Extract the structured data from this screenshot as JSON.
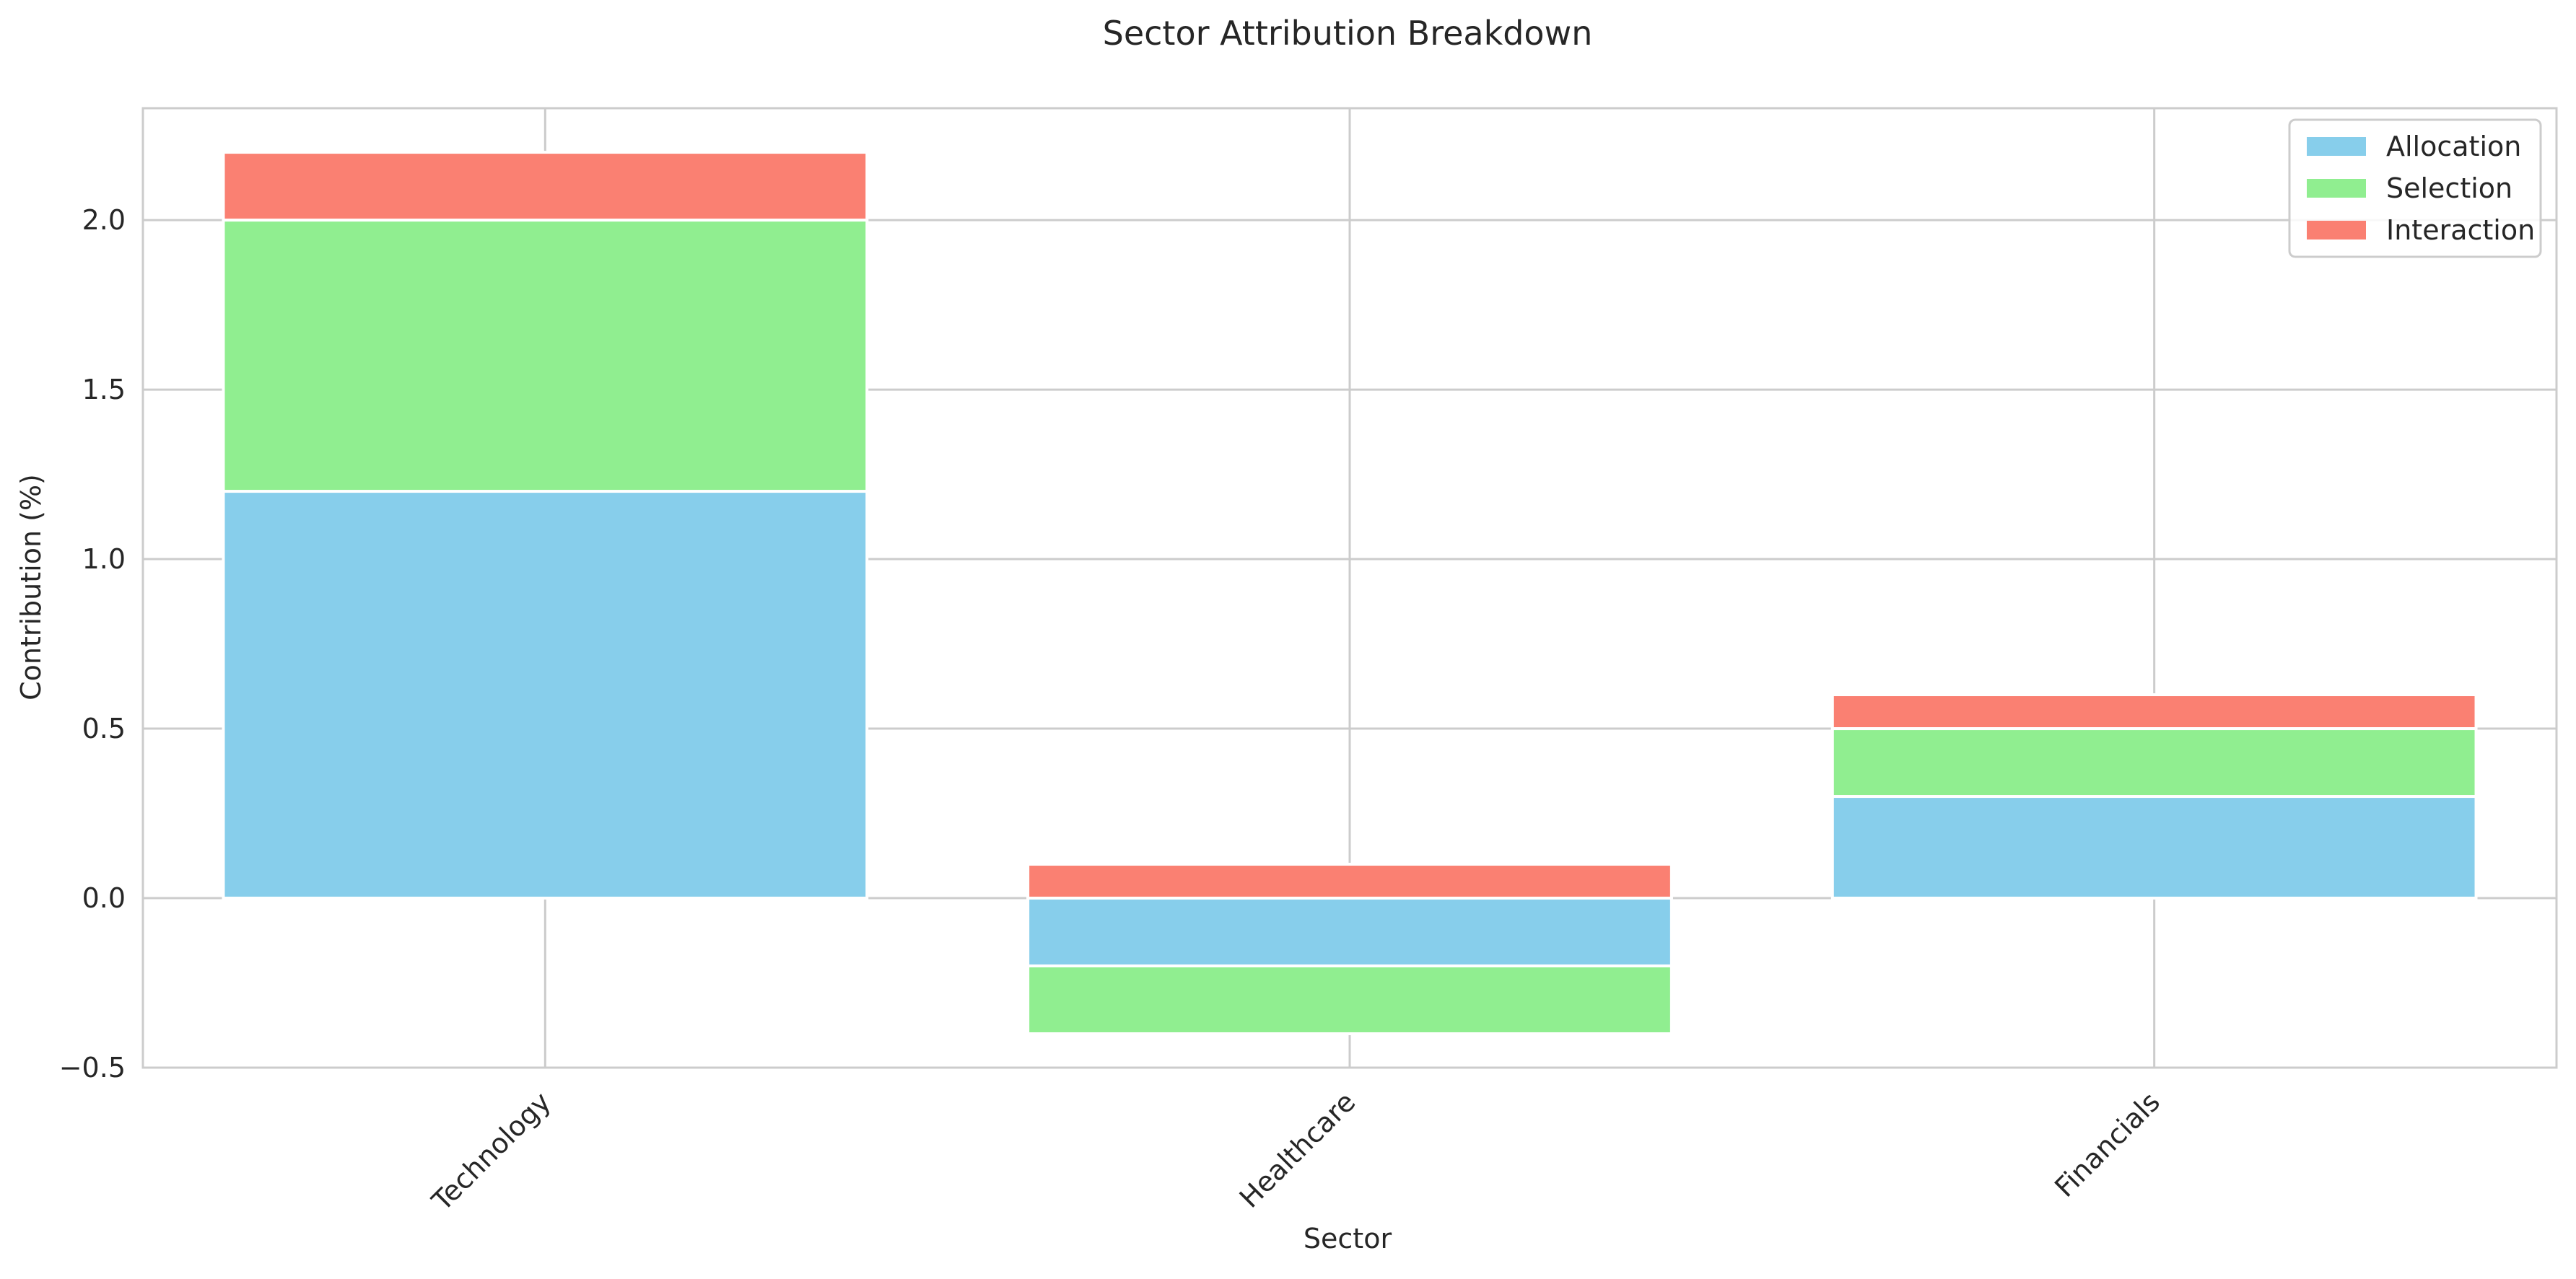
{
  "chart_data": {
    "type": "bar",
    "stacked": true,
    "title": "Sector Attribution Breakdown",
    "xlabel": "Sector",
    "ylabel": "Contribution (%)",
    "categories": [
      "Technology",
      "Healthcare",
      "Financials"
    ],
    "series": [
      {
        "name": "Allocation",
        "values": [
          1.2,
          -0.2,
          0.3
        ],
        "color": "#87ceeb"
      },
      {
        "name": "Selection",
        "values": [
          0.8,
          -0.2,
          0.2
        ],
        "color": "#90ee90"
      },
      {
        "name": "Interaction",
        "values": [
          0.2,
          0.1,
          0.1
        ],
        "color": "#fa8072"
      }
    ],
    "ylim": [
      -0.5,
      2.33
    ],
    "yticks": [
      -0.5,
      0.0,
      0.5,
      1.0,
      1.5,
      2.0
    ],
    "ytick_labels": [
      "−0.5",
      "0.0",
      "0.5",
      "1.0",
      "1.5",
      "2.0"
    ],
    "grid": true,
    "legend_position": "top-right"
  }
}
